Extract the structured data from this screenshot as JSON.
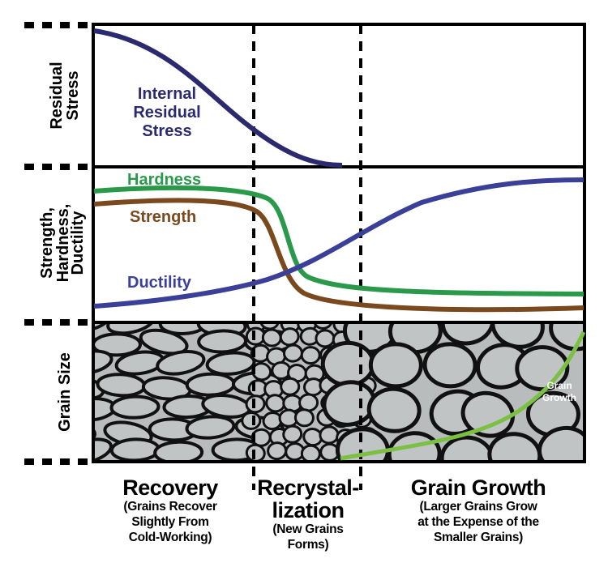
{
  "axis_labels": {
    "residual_stress": [
      "Residual",
      "Stress"
    ],
    "strength_hardness_ductility": [
      "Strength,",
      "Hardness,",
      "Ductility"
    ],
    "grain_size": "Grain Size"
  },
  "curve_labels": {
    "internal_residual_stress": [
      "Internal",
      "Residual",
      "Stress"
    ],
    "hardness": "Hardness",
    "strength": "Strength",
    "ductility": "Ductility",
    "grain_growth": [
      "Grain",
      "Growth"
    ]
  },
  "phases": [
    {
      "title": "Recovery",
      "subtitle": [
        "(Grains Recover",
        "Slightly From",
        "Cold-Working)"
      ]
    },
    {
      "title": "Recrystal-\nlization",
      "title_lines": [
        "Recrystal-",
        "lization"
      ],
      "subtitle": [
        "(New Grains",
        "Forms)"
      ]
    },
    {
      "title": "Grain Growth",
      "subtitle": [
        "(Larger Grains Grow",
        "at the Expense of the",
        "Smaller Grains)"
      ]
    }
  ],
  "colors": {
    "residual_stress": "#2b2a6e",
    "hardness": "#2a9a4a",
    "strength": "#7a4a1e",
    "ductility": "#3a3f98",
    "grain_growth": "#7cc043",
    "grain_bg": "#b8bcbc"
  }
}
